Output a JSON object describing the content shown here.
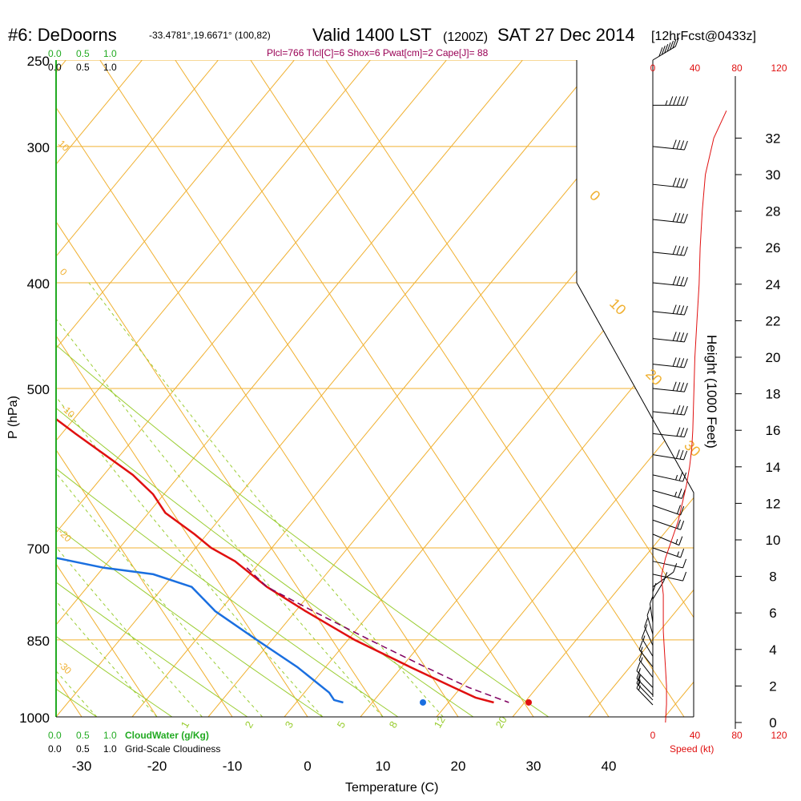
{
  "header": {
    "station": "#6: DeDoorns",
    "coords": "-33.4781°,19.6671° (100,82)",
    "valid": "Valid 1400 LST",
    "utc": "(1200Z)",
    "date": "SAT 27 Dec 2014",
    "forecast": "[12hrFcst@0433z]",
    "indices": "Plcl=766 Tlcl[C]=6 Shox=6 Pwat[cm]=2 Cape[J]= 88"
  },
  "legends": {
    "cloudwater_top": [
      "0.0",
      "0.5",
      "1.0"
    ],
    "cloudiness_top": [
      "0.0",
      "0.5",
      "1.0"
    ],
    "cloudwater_bottom": [
      "0.0",
      "0.5",
      "1.0"
    ],
    "cloudwater_label": "CloudWater (g/Kg)",
    "cloudiness_bottom": [
      "0.0",
      "0.5",
      "1.0"
    ],
    "cloudiness_label": "Grid-Scale Cloudiness"
  },
  "colors": {
    "temperature": "#e01010",
    "dewpoint": "#1a6fe0",
    "isotherm": "#f0b030",
    "dry_adiabat": "#f0b030",
    "moist_adiabat": "#9acd32",
    "mixing_ratio": "#9acd32",
    "parcel": "#800060",
    "cloud_legend": "#22aa22",
    "speed": "#e01010",
    "header_indices": "#990055"
  },
  "chart_data": {
    "type": "line",
    "title": "Skew-T sounding",
    "xlabel": "Temperature (C)",
    "ylabel": "P (hPa)",
    "y2label": "Height (1000 Feet)",
    "x_ticks": [
      -30,
      -20,
      -10,
      0,
      10,
      20,
      30,
      40
    ],
    "p_ticks": [
      250,
      300,
      400,
      500,
      700,
      850,
      1000
    ],
    "height_ticks": [
      0,
      2,
      4,
      6,
      8,
      10,
      12,
      14,
      16,
      18,
      20,
      22,
      24,
      26,
      28,
      30,
      32
    ],
    "speed_ticks": [
      0,
      40,
      80,
      120
    ],
    "speed_label": "Speed (kt)",
    "dry_adiabat_labels": [
      "10",
      "0",
      "-10",
      "-20",
      "-30",
      "0",
      "10",
      "20",
      "30"
    ],
    "mixing_ratio_labels": [
      "1",
      "2",
      "3",
      "5",
      "8",
      "12",
      "20"
    ],
    "series": [
      {
        "name": "Temperature",
        "points": [
          [
            250,
            -36
          ],
          [
            260,
            -35
          ],
          [
            300,
            -30
          ],
          [
            340,
            -26
          ],
          [
            400,
            -20
          ],
          [
            450,
            -15
          ],
          [
            500,
            -10
          ],
          [
            550,
            -6
          ],
          [
            600,
            -2
          ],
          [
            625,
            -1
          ],
          [
            650,
            -1
          ],
          [
            680,
            1
          ],
          [
            700,
            2
          ],
          [
            720,
            4
          ],
          [
            760,
            6
          ],
          [
            800,
            9
          ],
          [
            850,
            13
          ],
          [
            900,
            18
          ],
          [
            940,
            22
          ],
          [
            960,
            24
          ],
          [
            970,
            26
          ]
        ]
      },
      {
        "name": "Dewpoint",
        "points": [
          [
            250,
            -63
          ],
          [
            290,
            -58
          ],
          [
            320,
            -56
          ],
          [
            360,
            -54
          ],
          [
            400,
            -50
          ],
          [
            450,
            -46
          ],
          [
            500,
            -40
          ],
          [
            550,
            -33
          ],
          [
            590,
            -30
          ],
          [
            620,
            -30
          ],
          [
            650,
            -31
          ],
          [
            670,
            -33
          ],
          [
            700,
            -25
          ],
          [
            730,
            -14
          ],
          [
            740,
            -8
          ],
          [
            760,
            -4
          ],
          [
            800,
            -3
          ],
          [
            850,
            0
          ],
          [
            900,
            3
          ],
          [
            950,
            5
          ],
          [
            965,
            5
          ],
          [
            970,
            6
          ]
        ]
      },
      {
        "name": "Parcel",
        "points": [
          [
            730,
            5
          ],
          [
            760,
            6
          ],
          [
            800,
            10
          ],
          [
            850,
            15
          ],
          [
            900,
            20
          ],
          [
            940,
            24
          ],
          [
            970,
            28
          ]
        ]
      }
    ],
    "surface_dewpoint": {
      "p": 970,
      "t": 15.5
    },
    "surface_temperature": {
      "p": 970,
      "t": 29.5
    },
    "speed_profile": [
      [
        0,
        12
      ],
      [
        1,
        13
      ],
      [
        2,
        13
      ],
      [
        3,
        12
      ],
      [
        4,
        11
      ],
      [
        5,
        10
      ],
      [
        6,
        10
      ],
      [
        7,
        10
      ],
      [
        8,
        8
      ],
      [
        9,
        12
      ],
      [
        10,
        18
      ],
      [
        11,
        24
      ],
      [
        12,
        28
      ],
      [
        13,
        32
      ],
      [
        14,
        35
      ],
      [
        15,
        37
      ],
      [
        16,
        38
      ],
      [
        18,
        39
      ],
      [
        20,
        40
      ],
      [
        22,
        42
      ],
      [
        24,
        44
      ],
      [
        26,
        45
      ],
      [
        28,
        47
      ],
      [
        30,
        50
      ],
      [
        32,
        58
      ],
      [
        33.5,
        70
      ]
    ],
    "wind_barbs": [
      [
        250,
        225,
        70
      ],
      [
        275,
        270,
        55
      ],
      [
        300,
        280,
        40
      ],
      [
        325,
        280,
        40
      ],
      [
        350,
        280,
        40
      ],
      [
        375,
        280,
        40
      ],
      [
        400,
        280,
        40
      ],
      [
        425,
        280,
        40
      ],
      [
        450,
        280,
        40
      ],
      [
        475,
        280,
        40
      ],
      [
        500,
        280,
        40
      ],
      [
        525,
        280,
        35
      ],
      [
        550,
        280,
        30
      ],
      [
        575,
        285,
        30
      ],
      [
        600,
        290,
        25
      ],
      [
        620,
        295,
        25
      ],
      [
        640,
        300,
        20
      ],
      [
        660,
        300,
        20
      ],
      [
        680,
        305,
        15
      ],
      [
        700,
        300,
        15
      ],
      [
        720,
        290,
        10
      ],
      [
        740,
        290,
        10
      ],
      [
        760,
        220,
        10
      ],
      [
        780,
        200,
        10
      ],
      [
        800,
        180,
        12
      ],
      [
        820,
        175,
        14
      ],
      [
        840,
        170,
        14
      ],
      [
        860,
        165,
        15
      ],
      [
        880,
        160,
        15
      ],
      [
        900,
        155,
        15
      ],
      [
        920,
        155,
        15
      ],
      [
        940,
        150,
        15
      ],
      [
        955,
        150,
        15
      ],
      [
        965,
        150,
        15
      ],
      [
        975,
        150,
        15
      ]
    ]
  }
}
